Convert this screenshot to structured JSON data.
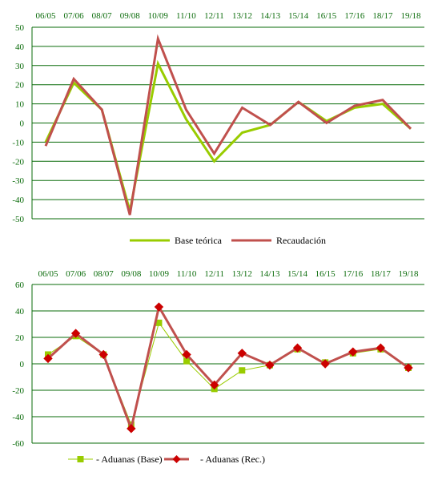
{
  "chart_data": [
    {
      "type": "line",
      "categories": [
        "06/05",
        "07/06",
        "08/07",
        "09/08",
        "10/09",
        "11/10",
        "12/11",
        "13/12",
        "14/13",
        "15/14",
        "16/15",
        "17/16",
        "18/17",
        "19/18"
      ],
      "ylim": [
        -50,
        50
      ],
      "yticks": [
        50,
        40,
        30,
        20,
        10,
        0,
        -10,
        -20,
        -30,
        -40,
        -50
      ],
      "grid": true,
      "legend_position": "bottom",
      "series": [
        {
          "name": "Base teórica",
          "color": "#99cc00",
          "values": [
            -10,
            21,
            7,
            -46,
            31,
            2,
            -20,
            -5,
            -1,
            11,
            1,
            8,
            10,
            -3
          ]
        },
        {
          "name": "Recaudación",
          "color": "#c0504d",
          "values": [
            -12,
            23,
            7,
            -48,
            44,
            7,
            -16,
            8,
            -1,
            11,
            0,
            9,
            12,
            -3
          ]
        }
      ]
    },
    {
      "type": "line",
      "categories": [
        "06/05",
        "07/06",
        "08/07",
        "09/08",
        "10/09",
        "11/10",
        "12/11",
        "13/12",
        "14/13",
        "15/14",
        "16/15",
        "17/16",
        "18/17",
        "19/18"
      ],
      "ylim": [
        -60,
        60
      ],
      "yticks": [
        60,
        40,
        20,
        0,
        -20,
        -40,
        -60
      ],
      "grid": true,
      "legend_position": "bottom",
      "series": [
        {
          "name": "- Aduanas (Base)",
          "color": "#99cc00",
          "marker": "square",
          "values": [
            7,
            21,
            7,
            -46,
            31,
            2,
            -19,
            -5,
            -1,
            11,
            1,
            8,
            11,
            -3
          ]
        },
        {
          "name": "- Aduanas (Rec.)",
          "color": "#c0504d",
          "marker": "diamond",
          "values": [
            4,
            23,
            7,
            -49,
            43,
            7,
            -16,
            8,
            -1,
            12,
            0,
            9,
            12,
            -3
          ]
        }
      ]
    }
  ]
}
